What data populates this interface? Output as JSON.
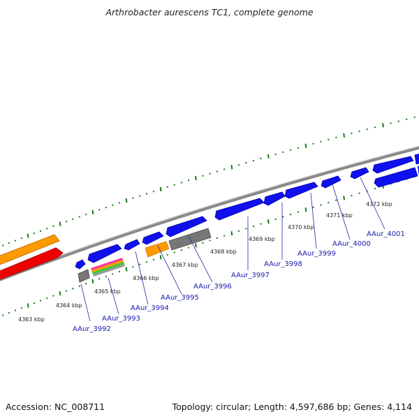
{
  "title": "Arthrobacter aurescens TC1, complete genome",
  "accession": "Accession: NC_008711",
  "summary": "Topology: circular; Length: 4,597,686 bp; Genes: 4,114",
  "colors": {
    "backbone": "#8a8a8a",
    "ticks": "#1a7a1a",
    "gene_forward": "#1010ee",
    "gene_reverse": "#1010ee",
    "orange": "#ff9900",
    "red": "#ee0000",
    "gray": "#777777",
    "label_line": "#2222aa"
  },
  "kbp_labels": [
    "4363 kbp",
    "4364 kbp",
    "4365 kbp",
    "4366 kbp",
    "4367 kbp",
    "4368 kbp",
    "4369 kbp",
    "4370 kbp",
    "4371 kbp",
    "4372 kbp"
  ],
  "gene_labels": [
    "AAur_3992",
    "AAur_3993",
    "AAur_3994",
    "AAur_3995",
    "AAur_3996",
    "AAur_3997",
    "AAur_3998",
    "AAur_3999",
    "AAur_4000",
    "AAur_4001"
  ]
}
